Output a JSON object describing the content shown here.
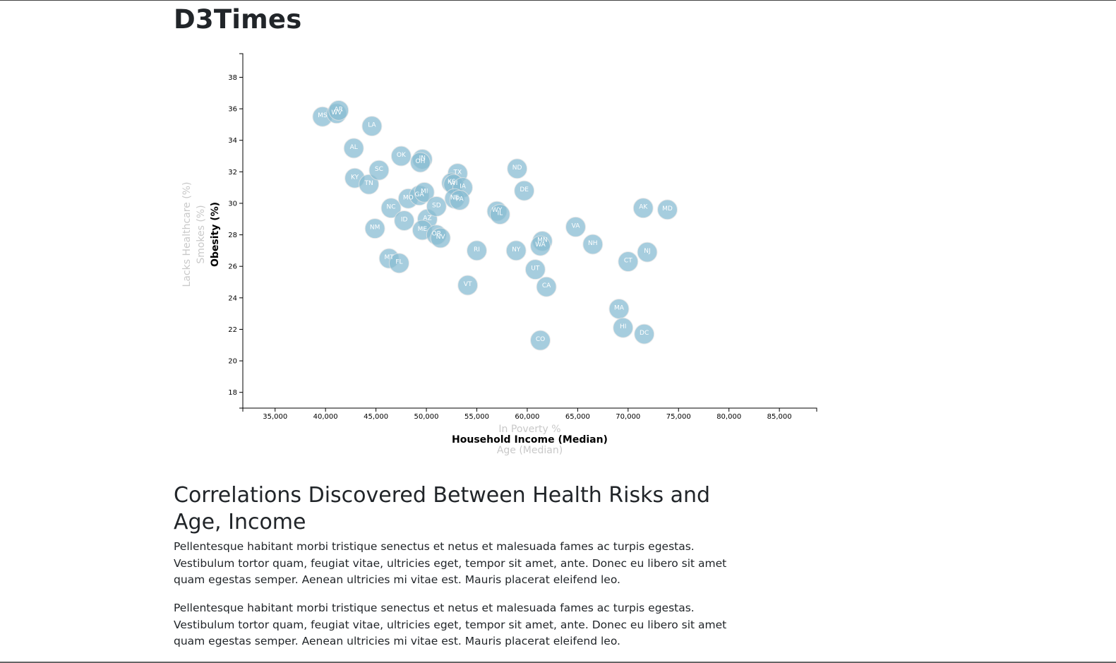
{
  "page": {
    "title": "D3Times",
    "section_title": "Correlations Discovered Between Health Risks and Age, Income",
    "paragraphs": [
      "Pellentesque habitant morbi tristique senectus et netus et malesuada fames ac turpis egestas. Vestibulum tortor quam, feugiat vitae, ultricies eget, tempor sit amet, ante. Donec eu libero sit amet quam egestas semper. Aenean ultricies mi vitae est. Mauris placerat eleifend leo.",
      "Pellentesque habitant morbi tristique senectus et netus et malesuada fames ac turpis egestas. Vestibulum tortor quam, feugiat vitae, ultricies eget, tempor sit amet, ante. Donec eu libero sit amet quam egestas semper. Aenean ultricies mi vitae est. Mauris placerat eleifend leo."
    ]
  },
  "colors": {
    "circle": "#89bdd3",
    "active_label": "#000000",
    "inactive_label": "#c9c9c9"
  },
  "chart_data": {
    "type": "scatter",
    "title": "",
    "xlabel": "Household Income (Median)",
    "ylabel": "Obesity (%)",
    "x_axis_options": [
      {
        "label": "In Poverty %",
        "active": false
      },
      {
        "label": "Household Income (Median)",
        "active": true
      },
      {
        "label": "Age (Median)",
        "active": false
      }
    ],
    "y_axis_options": [
      {
        "label": "Obesity (%)",
        "active": true
      },
      {
        "label": "Smokes (%)",
        "active": false
      },
      {
        "label": "Lacks Healthcare (%)",
        "active": false
      }
    ],
    "xlim": [
      31800,
      88700
    ],
    "ylim": [
      17,
      39.5
    ],
    "x_ticks": [
      35000,
      40000,
      45000,
      50000,
      55000,
      60000,
      65000,
      70000,
      75000,
      80000,
      85000
    ],
    "x_tick_labels": [
      "35,000",
      "40,000",
      "45,000",
      "50,000",
      "55,000",
      "60,000",
      "65,000",
      "70,000",
      "75,000",
      "80,000",
      "85,000"
    ],
    "y_ticks": [
      18,
      20,
      22,
      24,
      26,
      28,
      30,
      32,
      34,
      36,
      38
    ],
    "y_tick_labels": [
      "18",
      "20",
      "22",
      "24",
      "26",
      "28",
      "30",
      "32",
      "34",
      "36",
      "38"
    ],
    "grid": false,
    "points": [
      {
        "label": "MS",
        "x": 39700,
        "y": 35.5
      },
      {
        "label": "WV",
        "x": 41100,
        "y": 35.7
      },
      {
        "label": "AR",
        "x": 41300,
        "y": 35.9
      },
      {
        "label": "LA",
        "x": 44600,
        "y": 34.9
      },
      {
        "label": "AL",
        "x": 42800,
        "y": 33.5
      },
      {
        "label": "KY",
        "x": 42900,
        "y": 31.6
      },
      {
        "label": "TN",
        "x": 44300,
        "y": 31.2
      },
      {
        "label": "SC",
        "x": 45300,
        "y": 32.1
      },
      {
        "label": "OK",
        "x": 47500,
        "y": 33.0
      },
      {
        "label": "IN",
        "x": 49600,
        "y": 32.8
      },
      {
        "label": "OH",
        "x": 49400,
        "y": 32.6
      },
      {
        "label": "NM",
        "x": 44900,
        "y": 28.4
      },
      {
        "label": "NC",
        "x": 46500,
        "y": 29.7
      },
      {
        "label": "MO",
        "x": 48200,
        "y": 30.3
      },
      {
        "label": "GA",
        "x": 49300,
        "y": 30.5
      },
      {
        "label": "MI",
        "x": 49800,
        "y": 30.7
      },
      {
        "label": "ID",
        "x": 47800,
        "y": 28.9
      },
      {
        "label": "AZ",
        "x": 50100,
        "y": 29.0
      },
      {
        "label": "ME",
        "x": 49600,
        "y": 28.3
      },
      {
        "label": "SD",
        "x": 51000,
        "y": 29.8
      },
      {
        "label": "OR",
        "x": 51000,
        "y": 28.0
      },
      {
        "label": "NV",
        "x": 51400,
        "y": 27.8
      },
      {
        "label": "MT",
        "x": 46300,
        "y": 26.5
      },
      {
        "label": "FL",
        "x": 47300,
        "y": 26.2
      },
      {
        "label": "TX",
        "x": 53100,
        "y": 31.9
      },
      {
        "label": "KS",
        "x": 52500,
        "y": 31.3
      },
      {
        "label": "WI",
        "x": 52700,
        "y": 31.2
      },
      {
        "label": "IA",
        "x": 53600,
        "y": 31.0
      },
      {
        "label": "NE",
        "x": 52800,
        "y": 30.3
      },
      {
        "label": "PA",
        "x": 53300,
        "y": 30.2
      },
      {
        "label": "VT",
        "x": 54100,
        "y": 24.8
      },
      {
        "label": "RI",
        "x": 55000,
        "y": 27.0
      },
      {
        "label": "WY",
        "x": 57000,
        "y": 29.5
      },
      {
        "label": "IL",
        "x": 57300,
        "y": 29.3
      },
      {
        "label": "ND",
        "x": 59000,
        "y": 32.2
      },
      {
        "label": "DE",
        "x": 59700,
        "y": 30.8
      },
      {
        "label": "NY",
        "x": 58900,
        "y": 27.0
      },
      {
        "label": "UT",
        "x": 60800,
        "y": 25.8
      },
      {
        "label": "CA",
        "x": 61900,
        "y": 24.7
      },
      {
        "label": "MN",
        "x": 61500,
        "y": 27.6
      },
      {
        "label": "WA",
        "x": 61300,
        "y": 27.3
      },
      {
        "label": "CO",
        "x": 61300,
        "y": 21.3
      },
      {
        "label": "VA",
        "x": 64800,
        "y": 28.5
      },
      {
        "label": "NH",
        "x": 66500,
        "y": 27.4
      },
      {
        "label": "CT",
        "x": 70000,
        "y": 26.3
      },
      {
        "label": "MA",
        "x": 69100,
        "y": 23.3
      },
      {
        "label": "HI",
        "x": 69500,
        "y": 22.1
      },
      {
        "label": "DC",
        "x": 71600,
        "y": 21.7
      },
      {
        "label": "NJ",
        "x": 71900,
        "y": 26.9
      },
      {
        "label": "AK",
        "x": 71500,
        "y": 29.7
      },
      {
        "label": "MD",
        "x": 73900,
        "y": 29.6
      }
    ]
  }
}
